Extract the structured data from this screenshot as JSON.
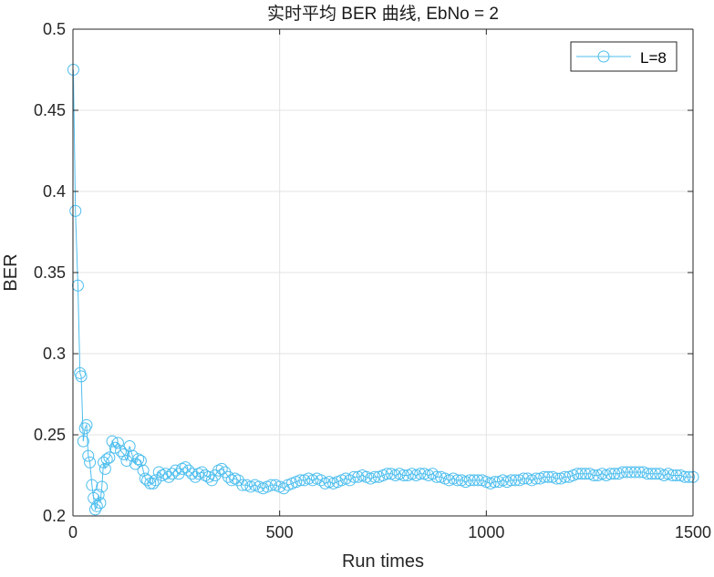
{
  "chart_data": {
    "type": "line",
    "title": "实时平均 BER 曲线, EbNo = 2",
    "xlabel": "Run times",
    "ylabel": "BER",
    "xlim": [
      0,
      1500
    ],
    "ylim": [
      0.2,
      0.5
    ],
    "xticks": [
      0,
      500,
      1000,
      1500
    ],
    "xtick_labels": [
      "0",
      "500",
      "1000",
      "1500"
    ],
    "yticks": [
      0.2,
      0.25,
      0.3,
      0.35,
      0.4,
      0.45,
      0.5
    ],
    "ytick_labels": [
      "0.2",
      "0.25",
      "0.3",
      "0.35",
      "0.4",
      "0.45",
      "0.5"
    ],
    "grid": true,
    "legend_position": "top-right",
    "series_color": "#4DBEEE",
    "axis_color": "#262626",
    "grid_color": "#e3e3e3",
    "series": [
      {
        "name": "L=8",
        "marker": "circle",
        "points": [
          [
            1,
            0.475
          ],
          [
            6,
            0.388
          ],
          [
            12,
            0.342
          ],
          [
            17,
            0.288
          ],
          [
            20,
            0.286
          ],
          [
            25,
            0.246
          ],
          [
            29,
            0.254
          ],
          [
            33,
            0.256
          ],
          [
            37,
            0.237
          ],
          [
            41,
            0.233
          ],
          [
            46,
            0.219
          ],
          [
            50,
            0.211
          ],
          [
            54,
            0.204
          ],
          [
            58,
            0.206
          ],
          [
            62,
            0.213
          ],
          [
            66,
            0.208
          ],
          [
            70,
            0.218
          ],
          [
            74,
            0.233
          ],
          [
            78,
            0.229
          ],
          [
            82,
            0.235
          ],
          [
            88,
            0.236
          ],
          [
            95,
            0.246
          ],
          [
            102,
            0.242
          ],
          [
            109,
            0.245
          ],
          [
            116,
            0.24
          ],
          [
            123,
            0.238
          ],
          [
            130,
            0.234
          ],
          [
            137,
            0.243
          ],
          [
            144,
            0.237
          ],
          [
            151,
            0.232
          ],
          [
            158,
            0.235
          ],
          [
            164,
            0.234
          ],
          [
            170,
            0.228
          ],
          [
            175,
            0.223
          ],
          [
            180,
            0.222
          ],
          [
            187,
            0.22
          ],
          [
            194,
            0.22
          ],
          [
            200,
            0.222
          ],
          [
            208,
            0.227
          ],
          [
            216,
            0.225
          ],
          [
            224,
            0.226
          ],
          [
            232,
            0.224
          ],
          [
            240,
            0.226
          ],
          [
            248,
            0.228
          ],
          [
            256,
            0.226
          ],
          [
            264,
            0.229
          ],
          [
            272,
            0.23
          ],
          [
            280,
            0.228
          ],
          [
            288,
            0.226
          ],
          [
            296,
            0.224
          ],
          [
            304,
            0.226
          ],
          [
            312,
            0.227
          ],
          [
            320,
            0.225
          ],
          [
            328,
            0.224
          ],
          [
            336,
            0.222
          ],
          [
            344,
            0.225
          ],
          [
            352,
            0.228
          ],
          [
            360,
            0.229
          ],
          [
            368,
            0.227
          ],
          [
            376,
            0.224
          ],
          [
            384,
            0.222
          ],
          [
            392,
            0.223
          ],
          [
            400,
            0.222
          ],
          [
            410,
            0.219
          ],
          [
            420,
            0.219
          ],
          [
            430,
            0.218
          ],
          [
            440,
            0.219
          ],
          [
            450,
            0.218
          ],
          [
            460,
            0.217
          ],
          [
            470,
            0.218
          ],
          [
            480,
            0.219
          ],
          [
            490,
            0.219
          ],
          [
            500,
            0.218
          ],
          [
            510,
            0.217
          ],
          [
            520,
            0.219
          ],
          [
            530,
            0.22
          ],
          [
            540,
            0.221
          ],
          [
            550,
            0.222
          ],
          [
            560,
            0.222
          ],
          [
            570,
            0.223
          ],
          [
            580,
            0.222
          ],
          [
            590,
            0.223
          ],
          [
            600,
            0.222
          ],
          [
            610,
            0.22
          ],
          [
            620,
            0.221
          ],
          [
            630,
            0.22
          ],
          [
            640,
            0.221
          ],
          [
            650,
            0.222
          ],
          [
            660,
            0.223
          ],
          [
            670,
            0.222
          ],
          [
            680,
            0.224
          ],
          [
            690,
            0.224
          ],
          [
            700,
            0.225
          ],
          [
            710,
            0.224
          ],
          [
            720,
            0.223
          ],
          [
            730,
            0.224
          ],
          [
            740,
            0.224
          ],
          [
            750,
            0.225
          ],
          [
            760,
            0.226
          ],
          [
            770,
            0.226
          ],
          [
            780,
            0.225
          ],
          [
            790,
            0.226
          ],
          [
            800,
            0.225
          ],
          [
            810,
            0.225
          ],
          [
            820,
            0.226
          ],
          [
            830,
            0.225
          ],
          [
            840,
            0.226
          ],
          [
            850,
            0.226
          ],
          [
            860,
            0.225
          ],
          [
            870,
            0.226
          ],
          [
            880,
            0.224
          ],
          [
            890,
            0.224
          ],
          [
            900,
            0.223
          ],
          [
            910,
            0.222
          ],
          [
            920,
            0.223
          ],
          [
            930,
            0.222
          ],
          [
            940,
            0.222
          ],
          [
            950,
            0.221
          ],
          [
            960,
            0.222
          ],
          [
            970,
            0.222
          ],
          [
            980,
            0.222
          ],
          [
            990,
            0.222
          ],
          [
            1000,
            0.221
          ],
          [
            1010,
            0.22
          ],
          [
            1020,
            0.221
          ],
          [
            1030,
            0.221
          ],
          [
            1040,
            0.222
          ],
          [
            1050,
            0.221
          ],
          [
            1060,
            0.222
          ],
          [
            1070,
            0.222
          ],
          [
            1080,
            0.222
          ],
          [
            1090,
            0.223
          ],
          [
            1100,
            0.223
          ],
          [
            1110,
            0.222
          ],
          [
            1120,
            0.223
          ],
          [
            1130,
            0.223
          ],
          [
            1140,
            0.224
          ],
          [
            1150,
            0.224
          ],
          [
            1160,
            0.224
          ],
          [
            1170,
            0.223
          ],
          [
            1180,
            0.223
          ],
          [
            1190,
            0.224
          ],
          [
            1200,
            0.224
          ],
          [
            1210,
            0.225
          ],
          [
            1220,
            0.226
          ],
          [
            1230,
            0.226
          ],
          [
            1240,
            0.226
          ],
          [
            1250,
            0.226
          ],
          [
            1260,
            0.225
          ],
          [
            1270,
            0.225
          ],
          [
            1280,
            0.226
          ],
          [
            1290,
            0.225
          ],
          [
            1300,
            0.226
          ],
          [
            1310,
            0.226
          ],
          [
            1320,
            0.226
          ],
          [
            1330,
            0.227
          ],
          [
            1340,
            0.227
          ],
          [
            1350,
            0.227
          ],
          [
            1360,
            0.227
          ],
          [
            1370,
            0.227
          ],
          [
            1380,
            0.227
          ],
          [
            1390,
            0.226
          ],
          [
            1400,
            0.226
          ],
          [
            1410,
            0.226
          ],
          [
            1420,
            0.226
          ],
          [
            1430,
            0.225
          ],
          [
            1440,
            0.226
          ],
          [
            1450,
            0.225
          ],
          [
            1460,
            0.225
          ],
          [
            1470,
            0.225
          ],
          [
            1480,
            0.224
          ],
          [
            1490,
            0.224
          ],
          [
            1500,
            0.224
          ]
        ]
      }
    ]
  }
}
